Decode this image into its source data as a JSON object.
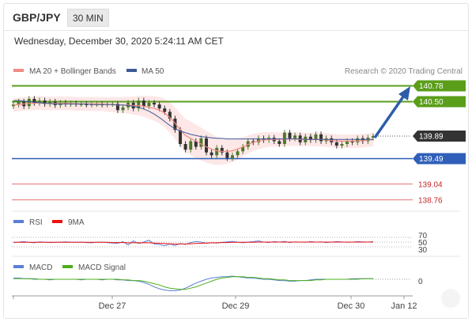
{
  "header": {
    "symbol": "GBP/JPY",
    "timeframe": "30 MIN"
  },
  "datetime": "Wednesday, December 30, 2020 5:24:11 AM CET",
  "legend": {
    "ma20_label": "MA 20 + Bollinger Bands",
    "ma50_label": "MA 50",
    "credit": "Research © 2020 Trading Central"
  },
  "colors": {
    "green_level": "#5a9e1a",
    "blue_level": "#2f5fb8",
    "red_level": "#e57373",
    "current_tag": "#333333",
    "ma20": "#f28b82",
    "ma50": "#3b5998",
    "band_fill": "#fde3e3",
    "candle_up": "#4a7a2a",
    "candle_down": "#333333",
    "arrow": "#2e5ea8"
  },
  "chart_data": [
    {
      "type": "line",
      "name": "price",
      "ylim": [
        138.6,
        140.9
      ],
      "x_ticks": [
        "Dec 27",
        "Dec 29",
        "Dec 30",
        "Jan 12"
      ],
      "levels": {
        "resistance": [
          140.78,
          140.5
        ],
        "current": 139.89,
        "support": [
          139.49
        ],
        "lower": [
          139.04,
          138.76
        ]
      },
      "close": [
        140.45,
        140.5,
        140.42,
        140.55,
        140.48,
        140.52,
        140.46,
        140.5,
        140.44,
        140.48,
        140.46,
        140.47,
        140.46,
        140.46,
        140.45,
        140.46,
        140.46,
        140.45,
        140.46,
        140.46,
        140.35,
        140.4,
        140.48,
        140.38,
        140.52,
        140.42,
        140.48,
        140.45,
        140.38,
        140.32,
        140.2,
        140.0,
        139.75,
        139.65,
        139.8,
        139.7,
        139.85,
        139.6,
        139.55,
        139.68,
        139.6,
        139.5,
        139.55,
        139.62,
        139.7,
        139.8,
        139.78,
        139.85,
        139.82,
        139.86,
        139.8,
        139.75,
        139.95,
        139.85,
        139.9,
        139.78,
        139.88,
        139.82,
        139.92,
        139.8,
        139.85,
        139.78,
        139.72,
        139.75,
        139.8,
        139.78,
        139.85,
        139.8,
        139.86,
        139.89
      ],
      "ma20": [
        140.44,
        140.45,
        140.46,
        140.47,
        140.47,
        140.48,
        140.47,
        140.47,
        140.47,
        140.47,
        140.47,
        140.47,
        140.46,
        140.46,
        140.46,
        140.46,
        140.46,
        140.46,
        140.45,
        140.45,
        140.44,
        140.44,
        140.44,
        140.43,
        140.43,
        140.42,
        140.4,
        140.38,
        140.35,
        140.3,
        140.22,
        140.12,
        140.0,
        139.9,
        139.85,
        139.8,
        139.75,
        139.7,
        139.66,
        139.63,
        139.62,
        139.62,
        139.63,
        139.66,
        139.7,
        139.74,
        139.78,
        139.8,
        139.82,
        139.83,
        139.83,
        139.83,
        139.84,
        139.84,
        139.84,
        139.83,
        139.83,
        139.83,
        139.83,
        139.83,
        139.82,
        139.81,
        139.8,
        139.8,
        139.8,
        139.8,
        139.8,
        139.81,
        139.82,
        139.83
      ],
      "ma50": [
        140.52,
        140.52,
        140.51,
        140.5,
        140.49,
        140.48,
        140.47,
        140.47,
        140.46,
        140.46,
        140.46,
        140.46,
        140.46,
        140.46,
        140.46,
        140.45,
        140.45,
        140.45,
        140.45,
        140.45,
        140.44,
        140.44,
        140.43,
        140.42,
        140.4,
        140.37,
        140.33,
        140.28,
        140.22,
        140.15,
        140.08,
        140.02,
        139.98,
        139.95,
        139.92,
        139.9,
        139.88,
        139.87,
        139.86,
        139.85,
        139.85,
        139.84,
        139.84,
        139.84,
        139.84,
        139.84,
        139.84,
        139.84,
        139.84,
        139.84,
        139.84,
        139.84,
        139.84,
        139.84,
        139.84,
        139.84,
        139.83,
        139.83,
        139.83,
        139.83,
        139.83,
        139.83,
        139.83,
        139.83,
        139.83,
        139.83,
        139.83,
        139.83,
        139.83,
        139.83
      ]
    },
    {
      "type": "line",
      "name": "RSI",
      "legend": [
        "RSI",
        "9MA"
      ],
      "y_ticks": [
        "70",
        "50",
        "30"
      ],
      "ylim": [
        20,
        80
      ],
      "rsi": [
        48,
        50,
        52,
        49,
        47,
        51,
        50,
        48,
        49,
        50,
        51,
        50,
        49,
        50,
        48,
        47,
        49,
        50,
        48,
        46,
        45,
        52,
        38,
        55,
        44,
        50,
        58,
        42,
        40,
        35,
        42,
        36,
        44,
        40,
        48,
        52,
        50,
        45,
        47,
        46,
        49,
        51,
        53,
        50,
        47,
        50,
        52,
        55,
        50,
        48,
        52,
        50,
        53,
        48,
        51,
        50,
        49,
        52,
        50,
        51,
        48,
        50,
        52,
        51,
        49,
        50,
        52,
        51,
        50,
        52
      ],
      "ma9": [
        49,
        49,
        49,
        49,
        49,
        49,
        49,
        49,
        49,
        49,
        49,
        49,
        49,
        49,
        49,
        49,
        49,
        49,
        49,
        48,
        48,
        48,
        47,
        47,
        47,
        47,
        47,
        46,
        45,
        44,
        43,
        42,
        42,
        42,
        43,
        44,
        45,
        46,
        47,
        47,
        48,
        48,
        49,
        49,
        49,
        49,
        49,
        50,
        50,
        50,
        50,
        50,
        50,
        50,
        50,
        50,
        50,
        50,
        50,
        50,
        50,
        50,
        50,
        50,
        50,
        50,
        50,
        50,
        50,
        50
      ]
    },
    {
      "type": "line",
      "name": "MACD",
      "legend": [
        "MACD",
        "MACD Signal"
      ],
      "y_ticks": [
        "0"
      ],
      "macd": [
        0.02,
        0.02,
        0.01,
        0.01,
        0.0,
        0.0,
        0.0,
        -0.01,
        0.0,
        0.0,
        0.0,
        0.0,
        0.0,
        -0.01,
        0.0,
        0.0,
        0.0,
        -0.01,
        0.0,
        0.0,
        -0.01,
        -0.01,
        -0.02,
        -0.02,
        -0.03,
        -0.05,
        -0.08,
        -0.12,
        -0.15,
        -0.17,
        -0.18,
        -0.18,
        -0.17,
        -0.14,
        -0.1,
        -0.06,
        -0.03,
        0.0,
        0.02,
        0.03,
        0.04,
        0.04,
        0.05,
        0.04,
        0.03,
        0.02,
        0.02,
        0.01,
        0.0,
        0.0,
        -0.01,
        -0.02,
        -0.02,
        -0.03,
        -0.03,
        -0.02,
        -0.02,
        -0.01,
        0.0,
        0.0,
        0.0,
        0.0,
        0.0,
        0.0,
        0.0,
        0.01,
        0.01,
        0.01,
        0.01,
        0.01
      ],
      "signal": [
        0.01,
        0.01,
        0.01,
        0.01,
        0.01,
        0.0,
        0.0,
        0.0,
        0.0,
        0.0,
        0.0,
        0.0,
        0.0,
        0.0,
        0.0,
        0.0,
        0.0,
        0.0,
        0.0,
        0.0,
        0.0,
        -0.01,
        -0.01,
        -0.02,
        -0.02,
        -0.03,
        -0.05,
        -0.07,
        -0.09,
        -0.12,
        -0.14,
        -0.15,
        -0.16,
        -0.16,
        -0.14,
        -0.12,
        -0.09,
        -0.06,
        -0.03,
        0.0,
        0.02,
        0.03,
        0.04,
        0.04,
        0.04,
        0.03,
        0.03,
        0.02,
        0.01,
        0.01,
        0.0,
        -0.01,
        -0.01,
        -0.02,
        -0.02,
        -0.02,
        -0.02,
        -0.02,
        -0.01,
        -0.01,
        0.0,
        0.0,
        0.0,
        0.0,
        0.0,
        0.0,
        0.0,
        0.01,
        0.01,
        0.01
      ]
    }
  ]
}
